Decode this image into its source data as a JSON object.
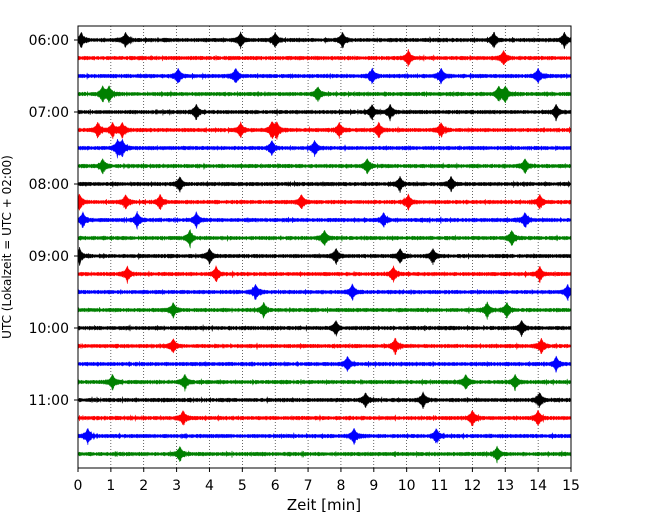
{
  "chart_data": {
    "type": "line",
    "title": "",
    "xlabel": "Zeit  [min]",
    "ylabel": "UTC (Lokalzeit = UTC + 02:00)",
    "xlim": [
      0,
      15
    ],
    "x_ticks": [
      "0",
      "1",
      "2",
      "3",
      "4",
      "5",
      "6",
      "7",
      "8",
      "9",
      "10",
      "11",
      "12",
      "13",
      "14",
      "15"
    ],
    "y_tick_labels": [
      "06:00",
      "07:00",
      "08:00",
      "09:00",
      "10:00",
      "11:00"
    ],
    "grid": "vertical dotted",
    "colors": [
      "#000000",
      "#ff0000",
      "#0000ff",
      "#008000"
    ],
    "series": [
      {
        "start": "06:00",
        "color": "#000000",
        "events": [
          0.1,
          1.45,
          4.95,
          6.0,
          8.05,
          12.65,
          14.8
        ]
      },
      {
        "start": "06:15",
        "color": "#ff0000",
        "events": [
          10.05,
          12.95
        ]
      },
      {
        "start": "06:30",
        "color": "#0000ff",
        "events": [
          3.05,
          4.8,
          8.95,
          11.05,
          14.0
        ]
      },
      {
        "start": "06:45",
        "color": "#008000",
        "events": [
          0.75,
          0.95,
          7.3,
          12.8,
          13.0
        ]
      },
      {
        "start": "07:00",
        "color": "#000000",
        "events": [
          3.6,
          8.95,
          9.5,
          14.55
        ]
      },
      {
        "start": "07:15",
        "color": "#ff0000",
        "events": [
          0.6,
          1.05,
          1.35,
          4.95,
          5.9,
          6.05,
          7.95,
          9.15,
          11.05
        ]
      },
      {
        "start": "07:30",
        "color": "#0000ff",
        "events": [
          1.2,
          1.35,
          5.9,
          7.2
        ]
      },
      {
        "start": "07:45",
        "color": "#008000",
        "events": [
          0.75,
          8.8,
          13.6
        ]
      },
      {
        "start": "08:00",
        "color": "#000000",
        "events": [
          3.1,
          9.8,
          11.35
        ]
      },
      {
        "start": "08:15",
        "color": "#ff0000",
        "events": [
          0.05,
          1.45,
          2.5,
          6.8,
          10.05,
          14.05
        ]
      },
      {
        "start": "08:30",
        "color": "#0000ff",
        "events": [
          0.15,
          1.8,
          3.6,
          9.3,
          13.6
        ]
      },
      {
        "start": "08:45",
        "color": "#008000",
        "events": [
          3.4,
          7.5,
          13.2
        ]
      },
      {
        "start": "09:00",
        "color": "#000000",
        "events": [
          0.05,
          4.0,
          7.85,
          9.8,
          10.8
        ]
      },
      {
        "start": "09:15",
        "color": "#ff0000",
        "events": [
          1.5,
          4.2,
          9.6,
          14.05
        ]
      },
      {
        "start": "09:30",
        "color": "#0000ff",
        "events": [
          5.4,
          8.35,
          14.9
        ]
      },
      {
        "start": "09:45",
        "color": "#008000",
        "events": [
          2.9,
          5.65,
          12.45,
          13.05
        ]
      },
      {
        "start": "10:00",
        "color": "#000000",
        "events": [
          7.85,
          13.5
        ]
      },
      {
        "start": "10:15",
        "color": "#ff0000",
        "events": [
          2.9,
          9.65,
          14.1
        ]
      },
      {
        "start": "10:30",
        "color": "#0000ff",
        "events": [
          8.2,
          14.55
        ]
      },
      {
        "start": "10:45",
        "color": "#008000",
        "events": [
          1.05,
          3.25,
          11.8,
          13.3
        ]
      },
      {
        "start": "11:00",
        "color": "#000000",
        "events": [
          8.75,
          10.5,
          14.05
        ]
      },
      {
        "start": "11:15",
        "color": "#ff0000",
        "events": [
          3.2,
          12.0,
          14.0
        ]
      },
      {
        "start": "11:30",
        "color": "#0000ff",
        "events": [
          0.3,
          8.4,
          10.9
        ]
      },
      {
        "start": "11:45",
        "color": "#008000",
        "events": [
          3.1,
          12.75
        ]
      }
    ]
  }
}
